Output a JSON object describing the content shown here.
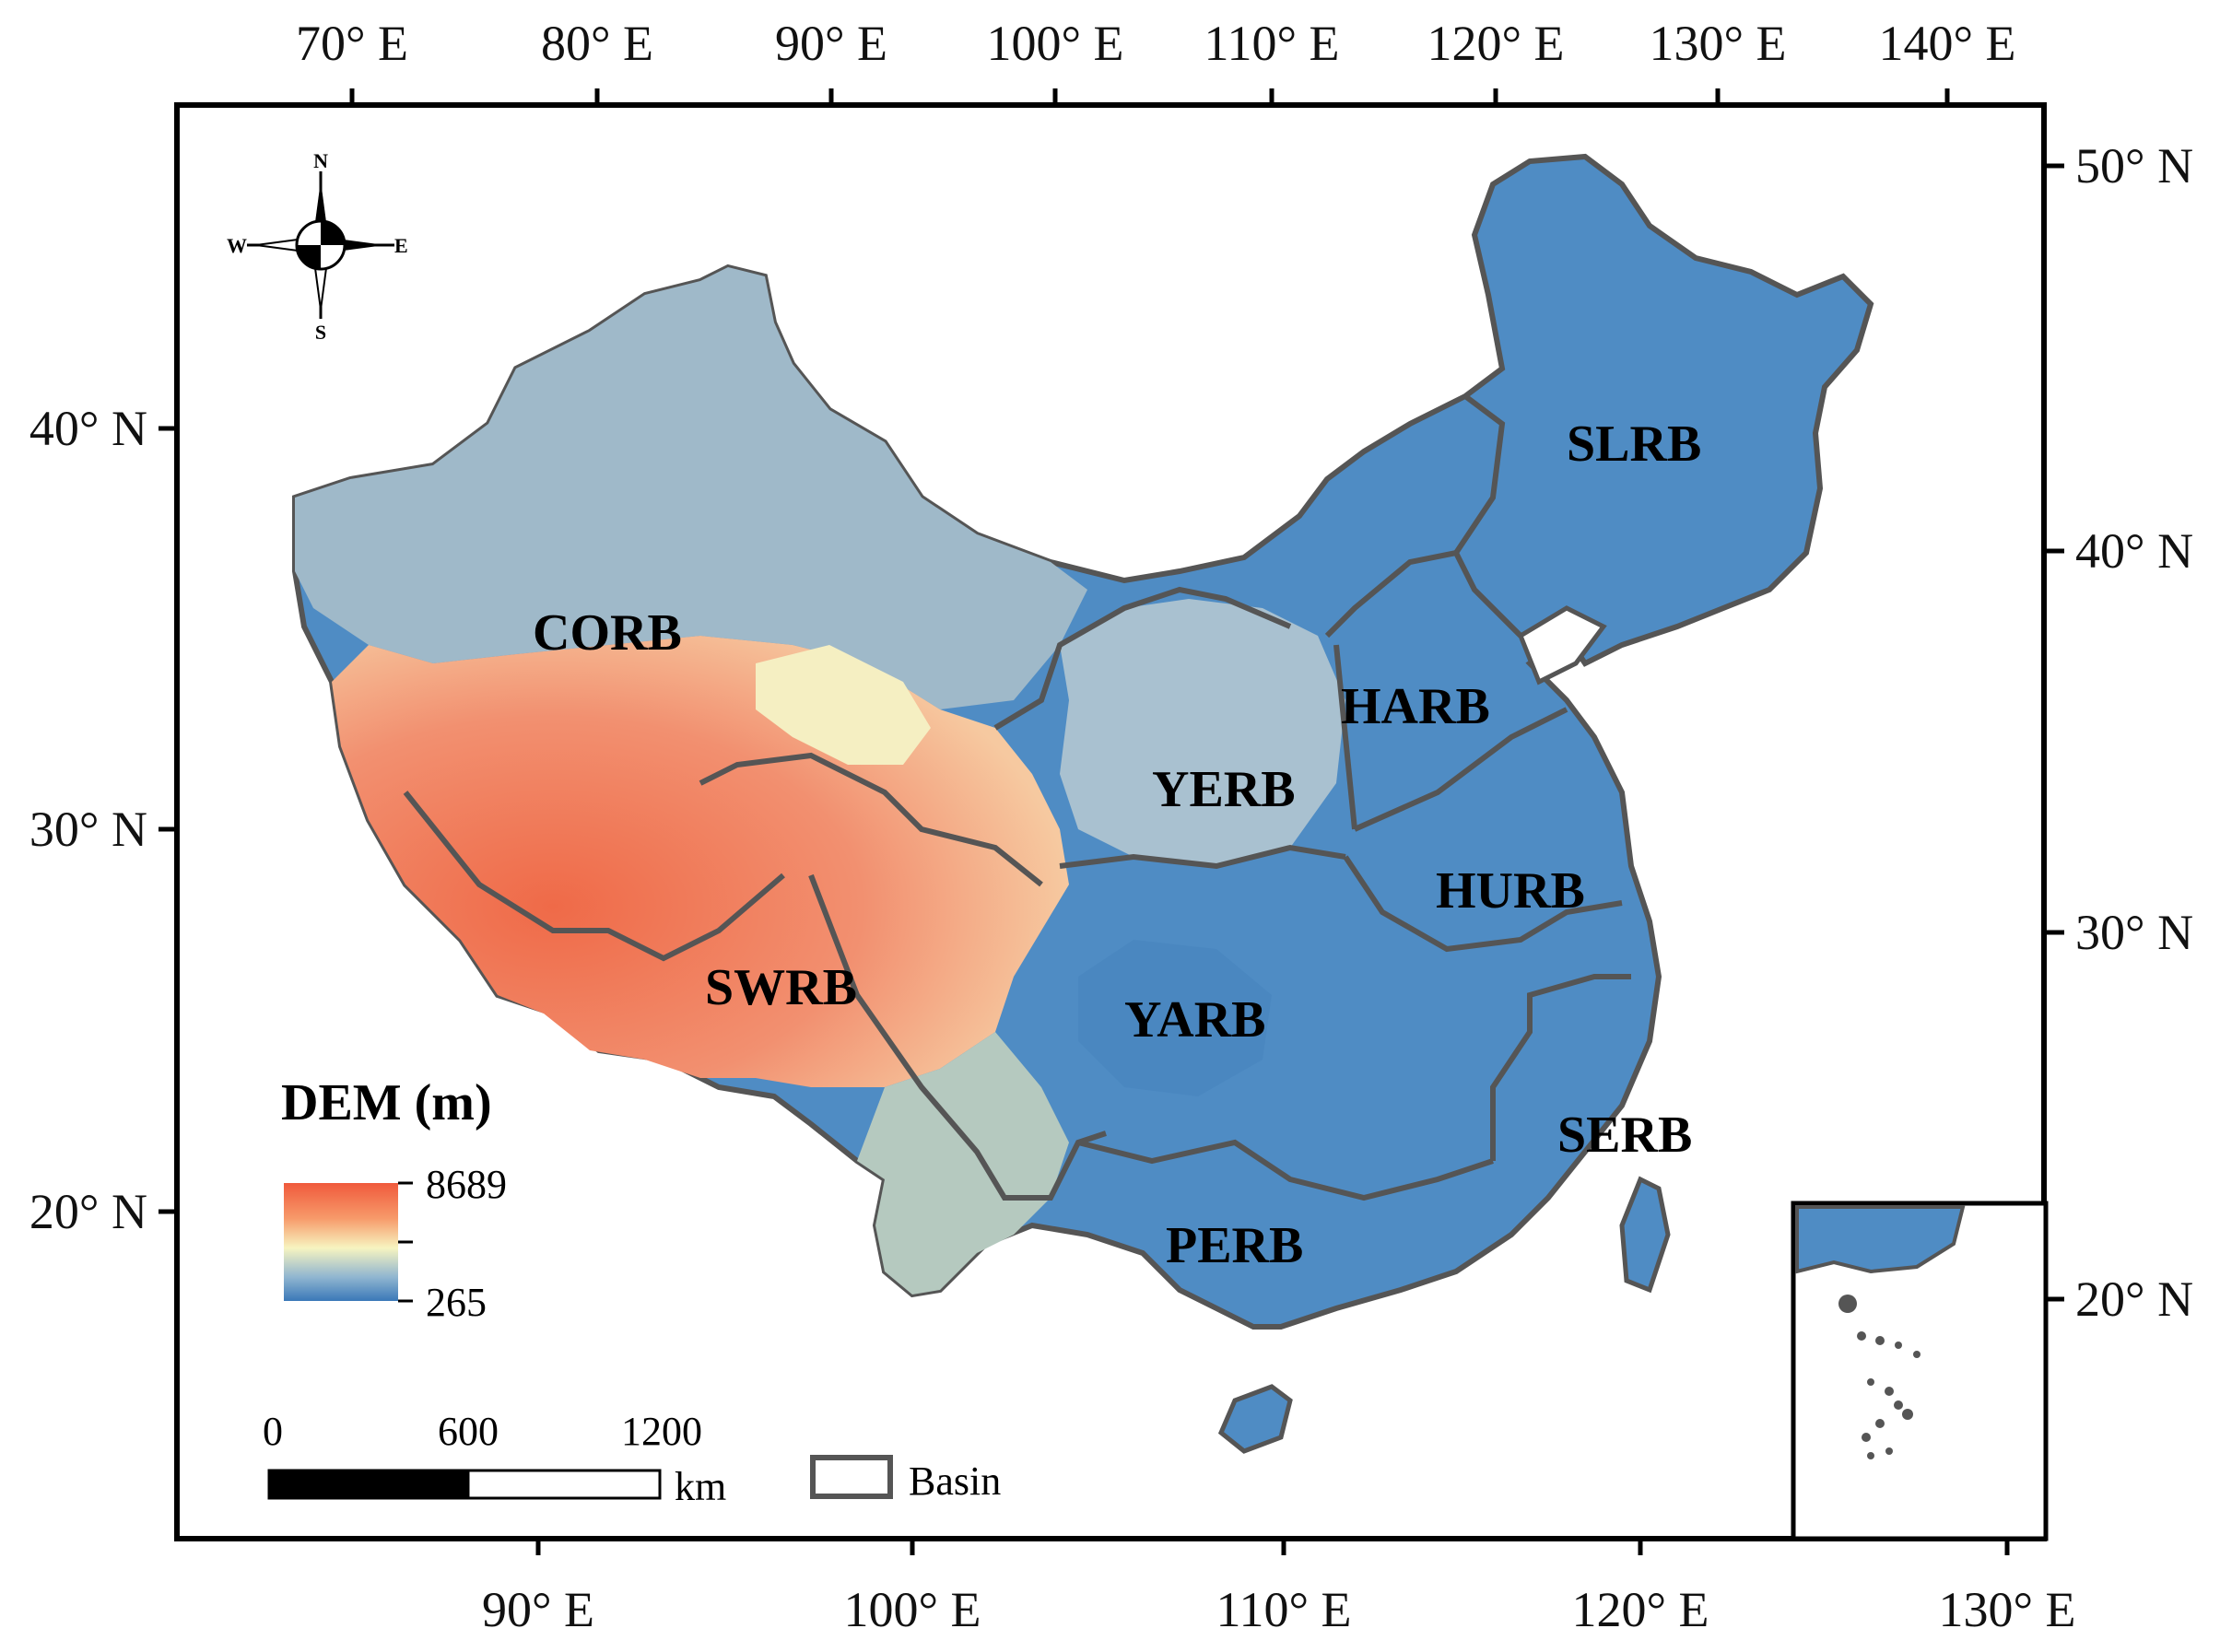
{
  "map": {
    "top_axis_labels": [
      "70° E",
      "80° E",
      "90° E",
      "100° E",
      "110° E",
      "120° E",
      "130° E",
      "140° E"
    ],
    "bottom_axis_labels": [
      "90° E",
      "100° E",
      "110° E",
      "120° E",
      "130° E"
    ],
    "left_axis_labels": [
      "40° N",
      "30° N",
      "20° N"
    ],
    "right_axis_labels": [
      "50° N",
      "40° N",
      "30° N",
      "20° N"
    ],
    "basins": [
      "SLRB",
      "CORB",
      "HARB",
      "YERB",
      "HURB",
      "SWRB",
      "YARB",
      "SERB",
      "PERB"
    ],
    "compass": {
      "n": "N",
      "s": "S",
      "e": "E",
      "w": "W"
    },
    "legend": {
      "title": "DEM (m)",
      "max": "8689",
      "min": "265",
      "colors": {
        "high": "#f05a3c",
        "mid": "#f7f4c0",
        "low": "#3a78b8"
      }
    },
    "scale_bar": {
      "labels": [
        "0",
        "600",
        "1200"
      ],
      "unit": "km"
    },
    "basin_legend": "Basin"
  }
}
